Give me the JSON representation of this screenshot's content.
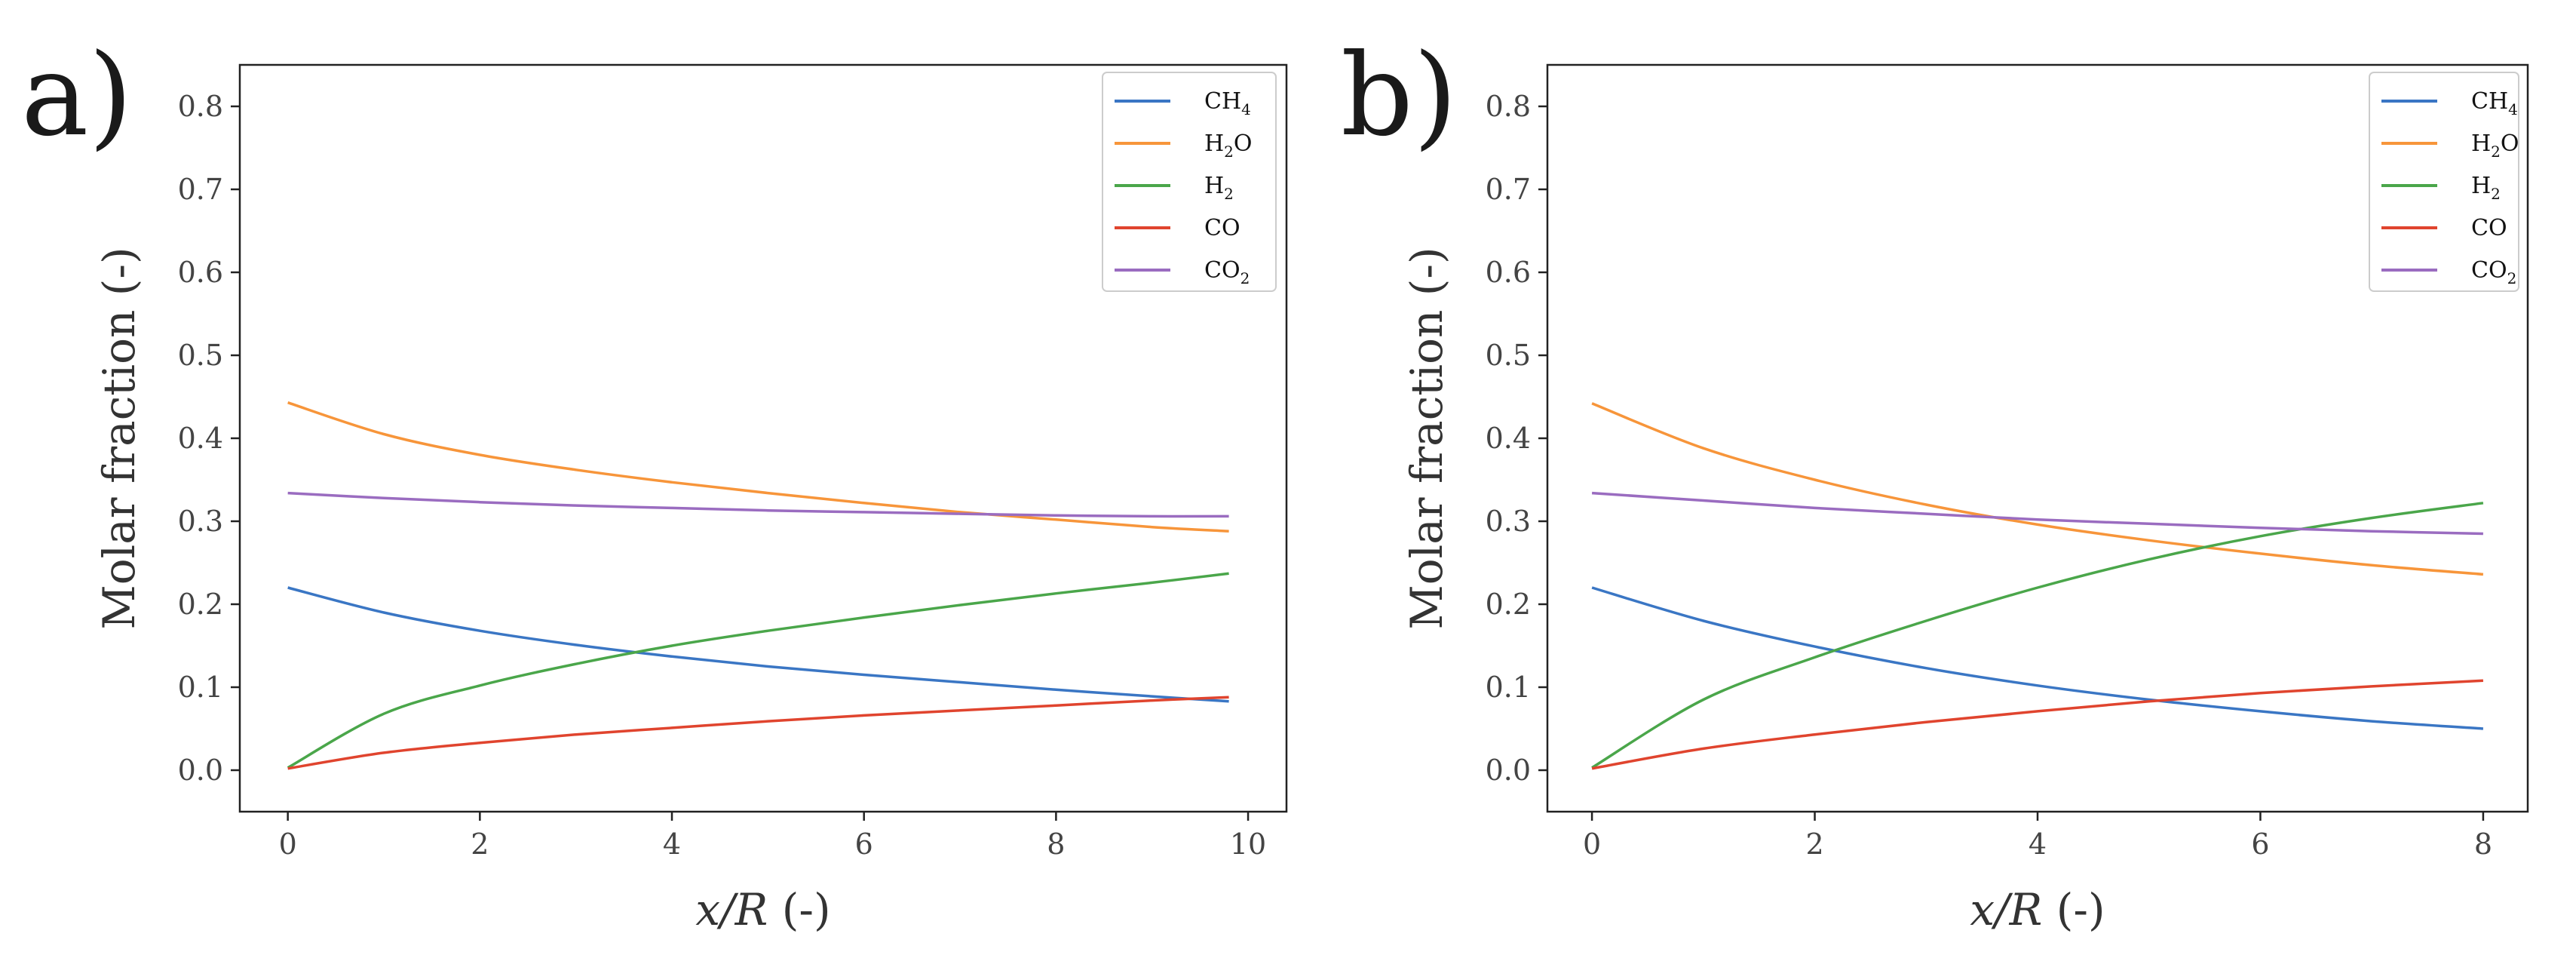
{
  "chart_data": [
    {
      "type": "line",
      "panel_label": "a)",
      "xlabel_var": "x/R",
      "xlabel_unit": " (-)",
      "ylabel": "Molar fraction (-)",
      "xlim": [
        -0.5,
        10.4
      ],
      "ylim": [
        -0.05,
        0.85
      ],
      "xticks": [
        0,
        2,
        4,
        6,
        8,
        10
      ],
      "yticks": [
        0.0,
        0.1,
        0.2,
        0.3,
        0.4,
        0.5,
        0.6,
        0.7,
        0.8
      ],
      "legend_position": "top-right",
      "x": [
        0,
        1,
        2,
        3,
        4,
        5,
        6,
        7,
        8,
        9,
        9.8
      ],
      "series": [
        {
          "name": "CH4",
          "label_main": "CH",
          "label_sub": "4",
          "color": "#3a76c4",
          "values": [
            0.22,
            0.19,
            0.168,
            0.151,
            0.137,
            0.125,
            0.115,
            0.106,
            0.097,
            0.089,
            0.083
          ]
        },
        {
          "name": "H2O",
          "label_main": "H",
          "label_sub": "2",
          "label_tail": "O",
          "color": "#f7953a",
          "values": [
            0.443,
            0.405,
            0.38,
            0.362,
            0.347,
            0.334,
            0.322,
            0.311,
            0.302,
            0.293,
            0.288
          ]
        },
        {
          "name": "H2",
          "label_main": "H",
          "label_sub": "2",
          "color": "#4aa64a",
          "values": [
            0.003,
            0.068,
            0.102,
            0.128,
            0.15,
            0.168,
            0.184,
            0.199,
            0.213,
            0.226,
            0.237
          ]
        },
        {
          "name": "CO",
          "label_main": "CO",
          "color": "#e0442e",
          "values": [
            0.002,
            0.021,
            0.033,
            0.043,
            0.051,
            0.059,
            0.066,
            0.072,
            0.078,
            0.084,
            0.088
          ]
        },
        {
          "name": "CO2",
          "label_main": "CO",
          "label_sub": "2",
          "color": "#9a6cc0",
          "values": [
            0.334,
            0.328,
            0.323,
            0.319,
            0.316,
            0.313,
            0.311,
            0.309,
            0.307,
            0.306,
            0.306
          ]
        }
      ]
    },
    {
      "type": "line",
      "panel_label": "b)",
      "xlabel_var": "x/R",
      "xlabel_unit": " (-)",
      "ylabel": "Molar fraction (-)",
      "xlim": [
        -0.4,
        8.4
      ],
      "ylim": [
        -0.05,
        0.85
      ],
      "xticks": [
        0,
        2,
        4,
        6,
        8
      ],
      "yticks": [
        0.0,
        0.1,
        0.2,
        0.3,
        0.4,
        0.5,
        0.6,
        0.7,
        0.8
      ],
      "legend_position": "top-right",
      "x": [
        0,
        1,
        2,
        3,
        4,
        5,
        6,
        7,
        8
      ],
      "series": [
        {
          "name": "CH4",
          "label_main": "CH",
          "label_sub": "4",
          "color": "#3a76c4",
          "values": [
            0.22,
            0.18,
            0.149,
            0.123,
            0.102,
            0.085,
            0.071,
            0.059,
            0.05
          ]
        },
        {
          "name": "H2O",
          "label_main": "H",
          "label_sub": "2",
          "label_tail": "O",
          "color": "#f7953a",
          "values": [
            0.442,
            0.388,
            0.35,
            0.32,
            0.296,
            0.277,
            0.261,
            0.247,
            0.236
          ]
        },
        {
          "name": "H2",
          "label_main": "H",
          "label_sub": "2",
          "color": "#4aa64a",
          "values": [
            0.003,
            0.085,
            0.136,
            0.18,
            0.22,
            0.254,
            0.282,
            0.304,
            0.322
          ]
        },
        {
          "name": "CO",
          "label_main": "CO",
          "color": "#e0442e",
          "values": [
            0.002,
            0.026,
            0.043,
            0.058,
            0.071,
            0.083,
            0.093,
            0.101,
            0.108
          ]
        },
        {
          "name": "CO2",
          "label_main": "CO",
          "label_sub": "2",
          "color": "#9a6cc0",
          "values": [
            0.334,
            0.325,
            0.316,
            0.309,
            0.302,
            0.297,
            0.292,
            0.288,
            0.285
          ]
        }
      ]
    }
  ]
}
